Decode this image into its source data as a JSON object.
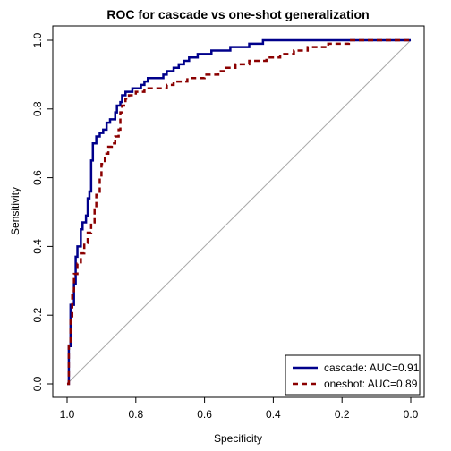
{
  "chart_data": {
    "type": "line",
    "title": "ROC for cascade vs one-shot generalization",
    "xlabel": "Specificity",
    "ylabel": "Sensitivity",
    "xlim": [
      1.0,
      0.0
    ],
    "ylim": [
      0.0,
      1.0
    ],
    "x_ticks": [
      1.0,
      0.8,
      0.6,
      0.4,
      0.2,
      0.0
    ],
    "x_tick_labels": [
      "1.0",
      "0.8",
      "0.6",
      "0.4",
      "0.2",
      "0.0"
    ],
    "y_ticks": [
      0.0,
      0.2,
      0.4,
      0.6,
      0.8,
      1.0
    ],
    "y_tick_labels": [
      "0.0",
      "0.2",
      "0.4",
      "0.6",
      "0.8",
      "1.0"
    ],
    "grid": false,
    "legend_position": "bottom-right",
    "reference_line": {
      "from": [
        1.0,
        0.0
      ],
      "to": [
        0.0,
        1.0
      ],
      "color": "#aaaaaa"
    },
    "series": [
      {
        "name": "cascade: AUC=0.91",
        "color": "#00008b",
        "dash": "solid",
        "points": [
          [
            1.0,
            0.0
          ],
          [
            0.995,
            0.0
          ],
          [
            0.995,
            0.11
          ],
          [
            0.99,
            0.11
          ],
          [
            0.99,
            0.23
          ],
          [
            0.98,
            0.23
          ],
          [
            0.98,
            0.29
          ],
          [
            0.975,
            0.29
          ],
          [
            0.975,
            0.37
          ],
          [
            0.97,
            0.37
          ],
          [
            0.97,
            0.4
          ],
          [
            0.96,
            0.4
          ],
          [
            0.96,
            0.45
          ],
          [
            0.955,
            0.45
          ],
          [
            0.955,
            0.47
          ],
          [
            0.945,
            0.47
          ],
          [
            0.945,
            0.49
          ],
          [
            0.94,
            0.49
          ],
          [
            0.94,
            0.54
          ],
          [
            0.935,
            0.54
          ],
          [
            0.935,
            0.56
          ],
          [
            0.93,
            0.56
          ],
          [
            0.93,
            0.65
          ],
          [
            0.925,
            0.65
          ],
          [
            0.925,
            0.7
          ],
          [
            0.915,
            0.7
          ],
          [
            0.915,
            0.72
          ],
          [
            0.905,
            0.72
          ],
          [
            0.905,
            0.73
          ],
          [
            0.895,
            0.73
          ],
          [
            0.895,
            0.74
          ],
          [
            0.885,
            0.74
          ],
          [
            0.885,
            0.76
          ],
          [
            0.875,
            0.76
          ],
          [
            0.875,
            0.77
          ],
          [
            0.86,
            0.77
          ],
          [
            0.86,
            0.79
          ],
          [
            0.855,
            0.79
          ],
          [
            0.855,
            0.81
          ],
          [
            0.845,
            0.81
          ],
          [
            0.845,
            0.82
          ],
          [
            0.84,
            0.82
          ],
          [
            0.84,
            0.84
          ],
          [
            0.83,
            0.84
          ],
          [
            0.83,
            0.85
          ],
          [
            0.81,
            0.85
          ],
          [
            0.81,
            0.86
          ],
          [
            0.785,
            0.86
          ],
          [
            0.785,
            0.87
          ],
          [
            0.775,
            0.87
          ],
          [
            0.775,
            0.88
          ],
          [
            0.765,
            0.88
          ],
          [
            0.765,
            0.89
          ],
          [
            0.72,
            0.89
          ],
          [
            0.72,
            0.9
          ],
          [
            0.71,
            0.9
          ],
          [
            0.71,
            0.91
          ],
          [
            0.69,
            0.91
          ],
          [
            0.69,
            0.92
          ],
          [
            0.675,
            0.92
          ],
          [
            0.675,
            0.93
          ],
          [
            0.66,
            0.93
          ],
          [
            0.66,
            0.94
          ],
          [
            0.645,
            0.94
          ],
          [
            0.645,
            0.95
          ],
          [
            0.62,
            0.95
          ],
          [
            0.62,
            0.96
          ],
          [
            0.58,
            0.96
          ],
          [
            0.58,
            0.97
          ],
          [
            0.525,
            0.97
          ],
          [
            0.525,
            0.98
          ],
          [
            0.47,
            0.98
          ],
          [
            0.47,
            0.99
          ],
          [
            0.43,
            0.99
          ],
          [
            0.43,
            1.0
          ],
          [
            0.0,
            1.0
          ]
        ]
      },
      {
        "name": "oneshot: AUC=0.89",
        "color": "#8b0000",
        "dash": "dashed",
        "points": [
          [
            1.0,
            0.0
          ],
          [
            0.995,
            0.0
          ],
          [
            0.995,
            0.12
          ],
          [
            0.99,
            0.12
          ],
          [
            0.99,
            0.19
          ],
          [
            0.985,
            0.19
          ],
          [
            0.985,
            0.27
          ],
          [
            0.98,
            0.27
          ],
          [
            0.98,
            0.32
          ],
          [
            0.97,
            0.32
          ],
          [
            0.97,
            0.35
          ],
          [
            0.96,
            0.35
          ],
          [
            0.96,
            0.38
          ],
          [
            0.95,
            0.38
          ],
          [
            0.95,
            0.41
          ],
          [
            0.94,
            0.41
          ],
          [
            0.94,
            0.44
          ],
          [
            0.93,
            0.44
          ],
          [
            0.93,
            0.47
          ],
          [
            0.92,
            0.47
          ],
          [
            0.92,
            0.51
          ],
          [
            0.915,
            0.51
          ],
          [
            0.915,
            0.55
          ],
          [
            0.905,
            0.55
          ],
          [
            0.905,
            0.6
          ],
          [
            0.9,
            0.6
          ],
          [
            0.9,
            0.64
          ],
          [
            0.89,
            0.64
          ],
          [
            0.89,
            0.67
          ],
          [
            0.88,
            0.67
          ],
          [
            0.88,
            0.69
          ],
          [
            0.87,
            0.69
          ],
          [
            0.87,
            0.7
          ],
          [
            0.86,
            0.7
          ],
          [
            0.86,
            0.72
          ],
          [
            0.85,
            0.72
          ],
          [
            0.85,
            0.74
          ],
          [
            0.845,
            0.74
          ],
          [
            0.845,
            0.79
          ],
          [
            0.84,
            0.79
          ],
          [
            0.84,
            0.81
          ],
          [
            0.83,
            0.81
          ],
          [
            0.83,
            0.83
          ],
          [
            0.82,
            0.83
          ],
          [
            0.82,
            0.84
          ],
          [
            0.8,
            0.84
          ],
          [
            0.8,
            0.85
          ],
          [
            0.775,
            0.85
          ],
          [
            0.775,
            0.86
          ],
          [
            0.71,
            0.86
          ],
          [
            0.71,
            0.87
          ],
          [
            0.69,
            0.87
          ],
          [
            0.69,
            0.88
          ],
          [
            0.65,
            0.88
          ],
          [
            0.65,
            0.89
          ],
          [
            0.6,
            0.89
          ],
          [
            0.6,
            0.9
          ],
          [
            0.56,
            0.9
          ],
          [
            0.56,
            0.91
          ],
          [
            0.54,
            0.91
          ],
          [
            0.54,
            0.92
          ],
          [
            0.51,
            0.92
          ],
          [
            0.51,
            0.93
          ],
          [
            0.47,
            0.93
          ],
          [
            0.47,
            0.94
          ],
          [
            0.42,
            0.94
          ],
          [
            0.42,
            0.95
          ],
          [
            0.38,
            0.95
          ],
          [
            0.38,
            0.96
          ],
          [
            0.34,
            0.96
          ],
          [
            0.34,
            0.97
          ],
          [
            0.3,
            0.97
          ],
          [
            0.3,
            0.98
          ],
          [
            0.24,
            0.98
          ],
          [
            0.24,
            0.99
          ],
          [
            0.18,
            0.99
          ],
          [
            0.18,
            1.0
          ],
          [
            0.0,
            1.0
          ]
        ]
      }
    ]
  }
}
